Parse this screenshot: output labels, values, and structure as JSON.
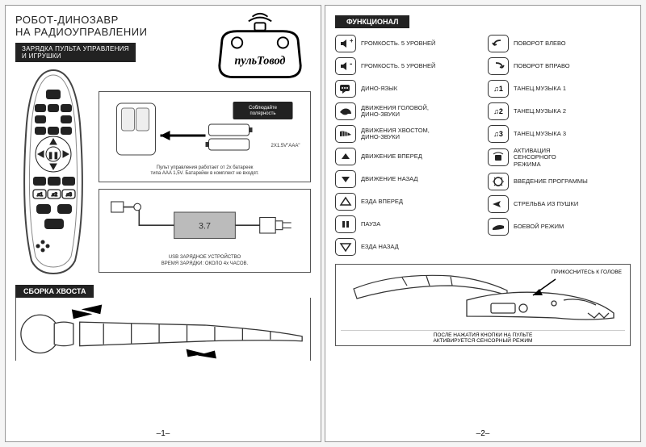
{
  "page1": {
    "title1": "РОБОТ-ДИНОЗАВР",
    "title2": "НА РАДИОУПРАВЛЕНИИ",
    "subtitle": "ЗАРЯДКА ПУЛЬТА УПРАВЛЕНИЯ\nИ ИГРУШКИ",
    "logo_text": "пульТовод",
    "battery_note": "Соблюдайте\nполярность",
    "battery_spec": "2X1.5V\"AAA\"",
    "battery_caption": "Пульт управления работает от 2х батареек\nтипа AAA 1,5V. Батарейки в комплект не входят.",
    "usb_voltage": "3.7",
    "usb_caption1": "USB ЗАРЯДНОЕ УСТРОЙСТВО",
    "usb_caption2": "ВРЕМЯ ЗАРЯДКИ: ОКОЛО 4х ЧАСОВ.",
    "assembly_header": "СБОРКА ХВОСТА",
    "pagenum": "–1–"
  },
  "page2": {
    "header": "ФУНКЦИОНАЛ",
    "col1": [
      {
        "icon": "vol-up",
        "label": "ГРОМКОСТЬ. 5 УРОВНЕЙ"
      },
      {
        "icon": "vol-down",
        "label": "ГРОМКОСТЬ. 5 УРОВНЕЙ"
      },
      {
        "icon": "speech",
        "label": "ДИНО-ЯЗЫК"
      },
      {
        "icon": "head",
        "label": "ДВИЖЕНИЯ ГОЛОВОЙ,\nДИНО-ЗВУКИ"
      },
      {
        "icon": "tail",
        "label": "ДВИЖЕНИЯ ХВОСТОМ,\nДИНО-ЗВУКИ"
      },
      {
        "icon": "up",
        "label": "ДВИЖЕНИЕ ВПЕРЕД"
      },
      {
        "icon": "down",
        "label": "ДВИЖЕНИЕ НАЗАД"
      },
      {
        "icon": "fwd",
        "label": "ЕЗДА ВПЕРЕД"
      },
      {
        "icon": "pause",
        "label": "ПАУЗА"
      },
      {
        "icon": "back",
        "label": "ЕЗДА НАЗАД"
      }
    ],
    "col2": [
      {
        "icon": "left",
        "label": "ПОВОРОТ ВЛЕВО"
      },
      {
        "icon": "right",
        "label": "ПОВОРОТ ВПРАВО"
      },
      {
        "icon": "m1",
        "text": "♫1",
        "label": "ТАНЕЦ.МУЗЫКА 1"
      },
      {
        "icon": "m2",
        "text": "♫2",
        "label": "ТАНЕЦ.МУЗЫКА 2"
      },
      {
        "icon": "m3",
        "text": "♫3",
        "label": "ТАНЕЦ.МУЗЫКА 3"
      },
      {
        "icon": "sensor",
        "label": "АКТИВАЦИЯ\nСЕНСОРНОГО\nРЕЖИМА"
      },
      {
        "icon": "prog",
        "label": "ВВЕДЕНИЕ ПРОГРАММЫ"
      },
      {
        "icon": "shoot",
        "label": "СТРЕЛЬБА ИЗ ПУШКИ"
      },
      {
        "icon": "battle",
        "label": "БОЕВОЙ РЕЖИМ"
      }
    ],
    "touch_label": "ПРИКОСНИТЕСЬ К ГОЛОВЕ",
    "touch_caption": "ПОСЛЕ НАЖАТИЯ КНОПКИ НА ПУЛЬТЕ\nАКТИВИРУЕТСЯ СЕНСОРНЫЙ РЕЖИМ",
    "pagenum": "–2–"
  },
  "colors": {
    "ink": "#222222",
    "border": "#555555",
    "bg": "#ffffff"
  }
}
